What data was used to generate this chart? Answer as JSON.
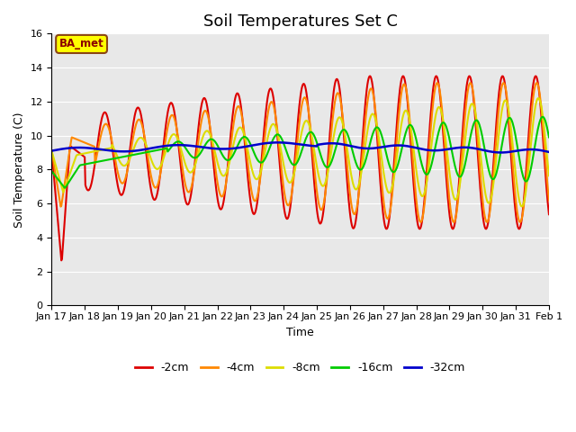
{
  "title": "Soil Temperatures Set C",
  "xlabel": "Time",
  "ylabel": "Soil Temperature (C)",
  "ylim": [
    0,
    16
  ],
  "yticks": [
    0,
    2,
    4,
    6,
    8,
    10,
    12,
    14,
    16
  ],
  "bg_color": "#e8e8e8",
  "annotation_text": "BA_met",
  "annotation_bg": "#ffff00",
  "annotation_border": "#8b4513",
  "series_colors": {
    "-2cm": "#dd0000",
    "-4cm": "#ff8800",
    "-8cm": "#dddd00",
    "-16cm": "#00cc00",
    "-32cm": "#0000cc"
  },
  "series_linewidths": {
    "-2cm": 1.5,
    "-4cm": 1.5,
    "-8cm": 1.5,
    "-16cm": 1.5,
    "-32cm": 1.8
  },
  "x_tick_labels": [
    "Jan 17",
    "Jan 18",
    "Jan 19",
    "Jan 20",
    "Jan 21",
    "Jan 22",
    "Jan 23",
    "Jan 24",
    "Jan 25",
    "Jan 26",
    "Jan 27",
    "Jan 28",
    "Jan 29",
    "Jan 30",
    "Jan 31",
    "Feb 1"
  ],
  "x_tick_positions": [
    0,
    1,
    2,
    3,
    4,
    5,
    6,
    7,
    8,
    9,
    10,
    11,
    12,
    13,
    14,
    15
  ],
  "title_fontsize": 13,
  "axis_label_fontsize": 9,
  "tick_fontsize": 8
}
